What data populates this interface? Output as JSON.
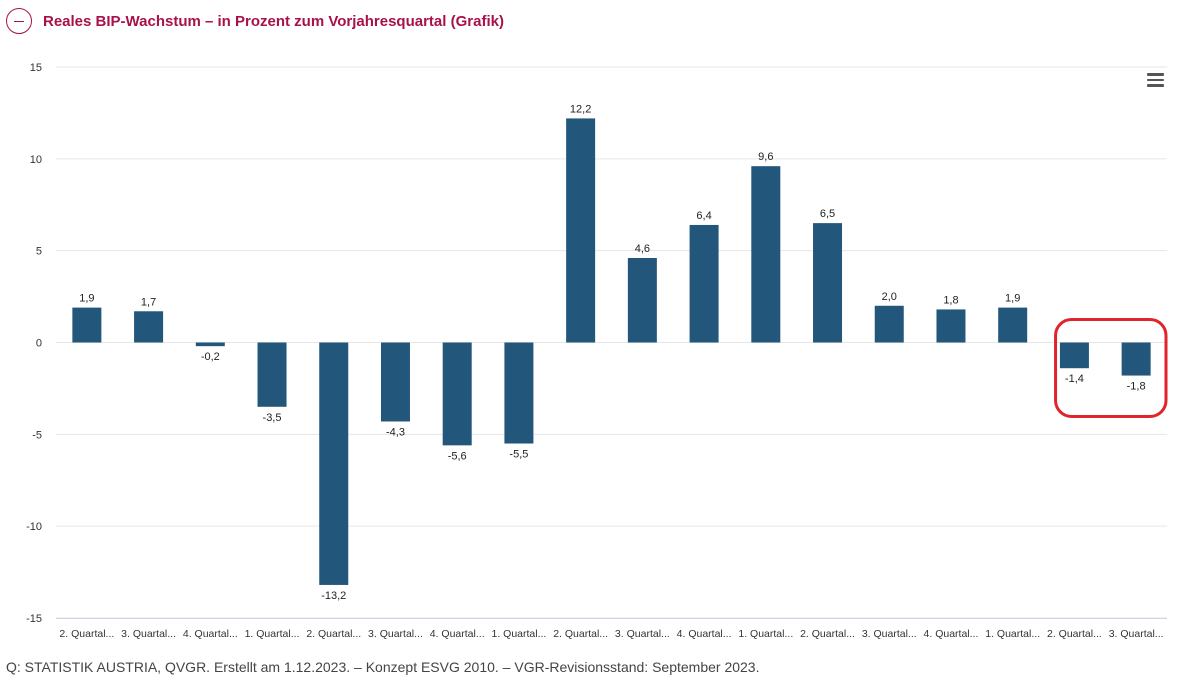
{
  "header": {
    "toggle_icon": "minus-circle-icon",
    "title": "Reales BIP-Wachstum – in Prozent zum Vorjahresquartal (Grafik)"
  },
  "menu": {
    "icon": "hamburger-menu-icon"
  },
  "chart_data": {
    "type": "bar",
    "categories": [
      "2. Quartal...",
      "3. Quartal...",
      "4. Quartal...",
      "1. Quartal...",
      "2. Quartal...",
      "3. Quartal...",
      "4. Quartal...",
      "1. Quartal...",
      "2. Quartal...",
      "3. Quartal...",
      "4. Quartal...",
      "1. Quartal...",
      "2. Quartal...",
      "3. Quartal...",
      "4. Quartal...",
      "1. Quartal...",
      "2. Quartal...",
      "3. Quartal..."
    ],
    "values": [
      1.9,
      1.7,
      -0.2,
      -3.5,
      -13.2,
      -4.3,
      -5.6,
      -5.5,
      12.2,
      4.6,
      6.4,
      9.6,
      6.5,
      2.0,
      1.8,
      1.9,
      -1.4,
      -1.8
    ],
    "value_labels": [
      "1,9",
      "1,7",
      "-0,2",
      "-3,5",
      "-13,2",
      "-4,3",
      "-5,6",
      "-5,5",
      "12,2",
      "4,6",
      "6,4",
      "9,6",
      "6,5",
      "2,0",
      "1,8",
      "1,9",
      "-1,4",
      "-1,8"
    ],
    "yticks": [
      15,
      10,
      5,
      0,
      -5,
      -10,
      -15
    ],
    "ylim": [
      -15,
      15
    ],
    "grid": true,
    "bar_color": "#22567a",
    "highlight": {
      "categories_index": [
        16,
        17
      ],
      "color": "#e0242b"
    }
  },
  "footer": {
    "source": "Q: STATISTIK AUSTRIA, QVGR. Erstellt am 1.12.2023. – Konzept ESVG 2010. – VGR-Revisionsstand: September 2023."
  }
}
